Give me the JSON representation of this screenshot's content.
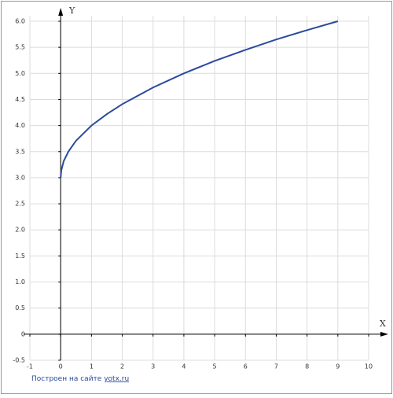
{
  "chart_data": {
    "type": "line",
    "xlabel": "X",
    "ylabel": "Y",
    "x": [
      0,
      0.02,
      0.1,
      0.25,
      0.5,
      1,
      1.5,
      2,
      3,
      4,
      5,
      6,
      7,
      8,
      9
    ],
    "values": [
      3,
      3.14,
      3.32,
      3.5,
      3.71,
      4,
      4.22,
      4.41,
      4.73,
      5,
      5.24,
      5.45,
      5.65,
      5.83,
      6
    ],
    "color": "#2a4a9c",
    "xlim": [
      -1,
      10
    ],
    "xticks": [
      -1,
      0,
      1,
      2,
      3,
      4,
      5,
      6,
      7,
      8,
      9,
      10
    ],
    "ylim": [
      -0.5,
      6
    ],
    "yticks": [
      -0.5,
      0,
      0.5,
      {
        "value": 1,
        "label": "1.0"
      },
      1.5,
      {
        "value": 2,
        "label": "2.0"
      },
      2.5,
      {
        "value": 3,
        "label": "3.0"
      },
      3.5,
      {
        "value": 4,
        "label": "4.0"
      },
      4.5,
      {
        "value": 5,
        "label": "5.0"
      },
      5.5,
      {
        "value": 6,
        "label": "6.0"
      }
    ],
    "grid": true
  },
  "footer": {
    "text": "Построен на сайте",
    "link": "yotx.ru"
  }
}
